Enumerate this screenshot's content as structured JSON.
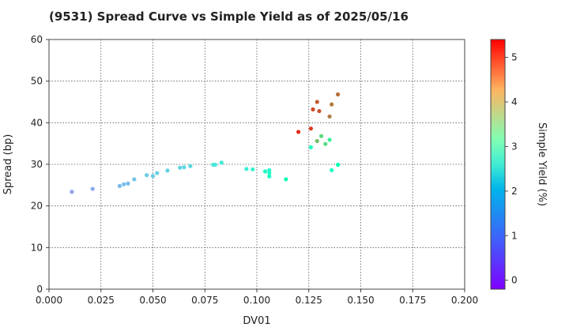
{
  "chart_data": {
    "type": "scatter",
    "title": "(9531)   Spread Curve vs Simple Yield as of 2025/05/16",
    "xlabel": "DV01",
    "ylabel": "Spread (bp)",
    "colorbar_label": "Simple Yield (%)",
    "xlim": [
      0.0,
      0.2
    ],
    "ylim": [
      0,
      60
    ],
    "clim": [
      -0.2,
      5.4
    ],
    "grid": true,
    "xticks": [
      "0.000",
      "0.025",
      "0.050",
      "0.075",
      "0.100",
      "0.125",
      "0.150",
      "0.175",
      "0.200"
    ],
    "yticks": [
      "0",
      "10",
      "20",
      "30",
      "40",
      "50",
      "60"
    ],
    "cticks": [
      "0",
      "1",
      "2",
      "3",
      "4",
      "5"
    ],
    "colorscale": "rainbow",
    "points": [
      {
        "x": 0.011,
        "y": 23.4,
        "c": 1.0
      },
      {
        "x": 0.021,
        "y": 24.1,
        "c": 1.1
      },
      {
        "x": 0.034,
        "y": 24.8,
        "c": 1.25
      },
      {
        "x": 0.036,
        "y": 25.2,
        "c": 1.3
      },
      {
        "x": 0.038,
        "y": 25.4,
        "c": 1.3
      },
      {
        "x": 0.041,
        "y": 26.4,
        "c": 1.35
      },
      {
        "x": 0.047,
        "y": 27.4,
        "c": 1.45
      },
      {
        "x": 0.05,
        "y": 27.2,
        "c": 1.45
      },
      {
        "x": 0.052,
        "y": 27.9,
        "c": 1.5
      },
      {
        "x": 0.057,
        "y": 28.5,
        "c": 1.5
      },
      {
        "x": 0.063,
        "y": 29.2,
        "c": 1.55
      },
      {
        "x": 0.065,
        "y": 29.3,
        "c": 1.6
      },
      {
        "x": 0.068,
        "y": 29.6,
        "c": 1.6
      },
      {
        "x": 0.079,
        "y": 29.9,
        "c": 1.8
      },
      {
        "x": 0.08,
        "y": 29.9,
        "c": 1.8
      },
      {
        "x": 0.083,
        "y": 30.4,
        "c": 1.85
      },
      {
        "x": 0.095,
        "y": 28.9,
        "c": 2.0
      },
      {
        "x": 0.098,
        "y": 28.8,
        "c": 2.0
      },
      {
        "x": 0.104,
        "y": 28.3,
        "c": 2.3
      },
      {
        "x": 0.106,
        "y": 28.6,
        "c": 2.1
      },
      {
        "x": 0.106,
        "y": 27.9,
        "c": 2.2
      },
      {
        "x": 0.106,
        "y": 27.1,
        "c": 2.3
      },
      {
        "x": 0.114,
        "y": 26.4,
        "c": 2.6
      },
      {
        "x": 0.12,
        "y": 37.8,
        "c": 5.1
      },
      {
        "x": 0.126,
        "y": 38.6,
        "c": 5.0
      },
      {
        "x": 0.127,
        "y": 43.2,
        "c": 4.9
      },
      {
        "x": 0.129,
        "y": 45.0,
        "c": 4.75
      },
      {
        "x": 0.13,
        "y": 42.8,
        "c": 4.8
      },
      {
        "x": 0.126,
        "y": 34.1,
        "c": 2.25
      },
      {
        "x": 0.129,
        "y": 35.6,
        "c": 3.9
      },
      {
        "x": 0.131,
        "y": 36.8,
        "c": 3.6
      },
      {
        "x": 0.133,
        "y": 34.9,
        "c": 3.5
      },
      {
        "x": 0.135,
        "y": 35.9,
        "c": 3.2
      },
      {
        "x": 0.135,
        "y": 41.5,
        "c": 4.5
      },
      {
        "x": 0.136,
        "y": 44.4,
        "c": 4.5
      },
      {
        "x": 0.136,
        "y": 28.6,
        "c": 2.3
      },
      {
        "x": 0.139,
        "y": 46.8,
        "c": 4.6
      },
      {
        "x": 0.139,
        "y": 29.9,
        "c": 2.6
      }
    ]
  }
}
